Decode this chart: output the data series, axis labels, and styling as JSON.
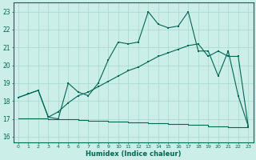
{
  "xlabel": "Humidex (Indice chaleur)",
  "xlim": [
    -0.5,
    23.5
  ],
  "ylim": [
    15.7,
    23.5
  ],
  "xticks": [
    0,
    1,
    2,
    3,
    4,
    5,
    6,
    7,
    8,
    9,
    10,
    11,
    12,
    13,
    14,
    15,
    16,
    17,
    18,
    19,
    20,
    21,
    22,
    23
  ],
  "yticks": [
    16,
    17,
    18,
    19,
    20,
    21,
    22,
    23
  ],
  "bg_color": "#cceee8",
  "grid_color": "#aaddcc",
  "line_color": "#006655",
  "line1_x": [
    0,
    1,
    2,
    3,
    4,
    5,
    6,
    7,
    8,
    9,
    10,
    11,
    12,
    13,
    14,
    15,
    16,
    17,
    18,
    19,
    20,
    21,
    22,
    23
  ],
  "line1_y": [
    18.2,
    18.4,
    18.6,
    17.1,
    17.0,
    19.0,
    18.5,
    18.3,
    19.0,
    20.3,
    21.3,
    21.2,
    21.3,
    23.0,
    22.3,
    22.1,
    22.2,
    23.0,
    20.8,
    20.8,
    19.4,
    20.8,
    18.3,
    16.6
  ],
  "line2_x": [
    0,
    1,
    2,
    3,
    4,
    5,
    6,
    7,
    8,
    9,
    10,
    11,
    12,
    13,
    14,
    15,
    16,
    17,
    18,
    19,
    20,
    21,
    22,
    23
  ],
  "line2_y": [
    18.2,
    18.4,
    18.6,
    17.1,
    17.4,
    17.9,
    18.3,
    18.5,
    18.8,
    19.1,
    19.4,
    19.7,
    19.9,
    20.2,
    20.5,
    20.7,
    20.9,
    21.1,
    21.2,
    20.5,
    20.8,
    20.5,
    20.5,
    16.6
  ],
  "line3_x": [
    0,
    1,
    2,
    3,
    4,
    5,
    6,
    7,
    8,
    9,
    10,
    11,
    12,
    13,
    14,
    15,
    16,
    17,
    18,
    19,
    20,
    21,
    22,
    23
  ],
  "line3_y": [
    17.05,
    17.05,
    17.05,
    17.0,
    17.0,
    17.0,
    16.95,
    16.9,
    16.9,
    16.85,
    16.85,
    16.8,
    16.8,
    16.75,
    16.75,
    16.7,
    16.7,
    16.65,
    16.65,
    16.6,
    16.6,
    16.55,
    16.55,
    16.55
  ]
}
